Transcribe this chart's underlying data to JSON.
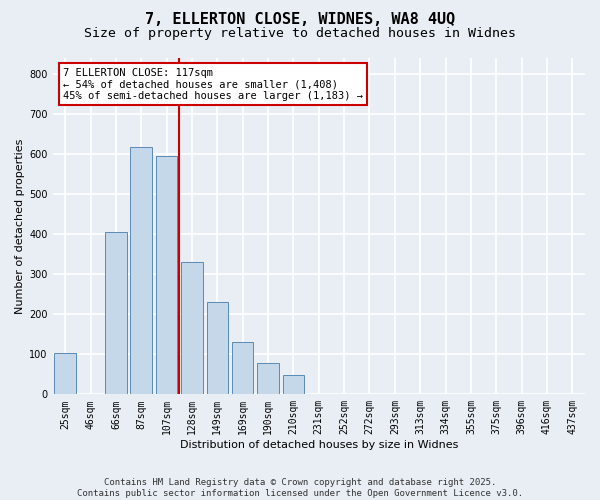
{
  "title_line1": "7, ELLERTON CLOSE, WIDNES, WA8 4UQ",
  "title_line2": "Size of property relative to detached houses in Widnes",
  "xlabel": "Distribution of detached houses by size in Widnes",
  "ylabel": "Number of detached properties",
  "categories": [
    "25sqm",
    "46sqm",
    "66sqm",
    "87sqm",
    "107sqm",
    "128sqm",
    "149sqm",
    "169sqm",
    "190sqm",
    "210sqm",
    "231sqm",
    "252sqm",
    "272sqm",
    "293sqm",
    "313sqm",
    "334sqm",
    "355sqm",
    "375sqm",
    "396sqm",
    "416sqm",
    "437sqm"
  ],
  "values": [
    104,
    0,
    405,
    617,
    594,
    330,
    230,
    130,
    78,
    48,
    0,
    0,
    0,
    0,
    0,
    0,
    0,
    0,
    0,
    0,
    0
  ],
  "bar_color": "#c5d8ea",
  "bar_edge_color": "#5a8ab5",
  "vline_color": "#cc0000",
  "vline_x_index": 4.5,
  "annotation_text": "7 ELLERTON CLOSE: 117sqm\n← 54% of detached houses are smaller (1,408)\n45% of semi-detached houses are larger (1,183) →",
  "annotation_box_facecolor": "#ffffff",
  "annotation_box_edgecolor": "#cc0000",
  "ylim": [
    0,
    840
  ],
  "yticks": [
    0,
    100,
    200,
    300,
    400,
    500,
    600,
    700,
    800
  ],
  "footer_line1": "Contains HM Land Registry data © Crown copyright and database right 2025.",
  "footer_line2": "Contains public sector information licensed under the Open Government Licence v3.0.",
  "background_color": "#e8eef4",
  "plot_bg_color": "#e8eef4",
  "grid_color": "#ffffff",
  "title_fontsize": 11,
  "subtitle_fontsize": 9.5,
  "axis_label_fontsize": 8,
  "tick_fontsize": 7,
  "footer_fontsize": 6.5,
  "annotation_fontsize": 7.5
}
